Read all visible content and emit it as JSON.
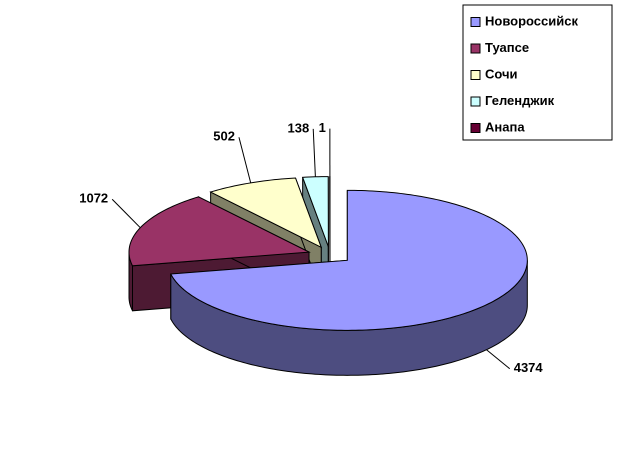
{
  "chart_data": {
    "type": "pie",
    "categories": [
      "Новороссийск",
      "Туапсе",
      "Сочи",
      "Геленджик",
      "Анапа"
    ],
    "values": [
      4374,
      1072,
      502,
      138,
      1
    ],
    "colors": [
      "#9999ff",
      "#993366",
      "#ffffcc",
      "#ccffff",
      "#660033"
    ],
    "legend": "top-right"
  }
}
